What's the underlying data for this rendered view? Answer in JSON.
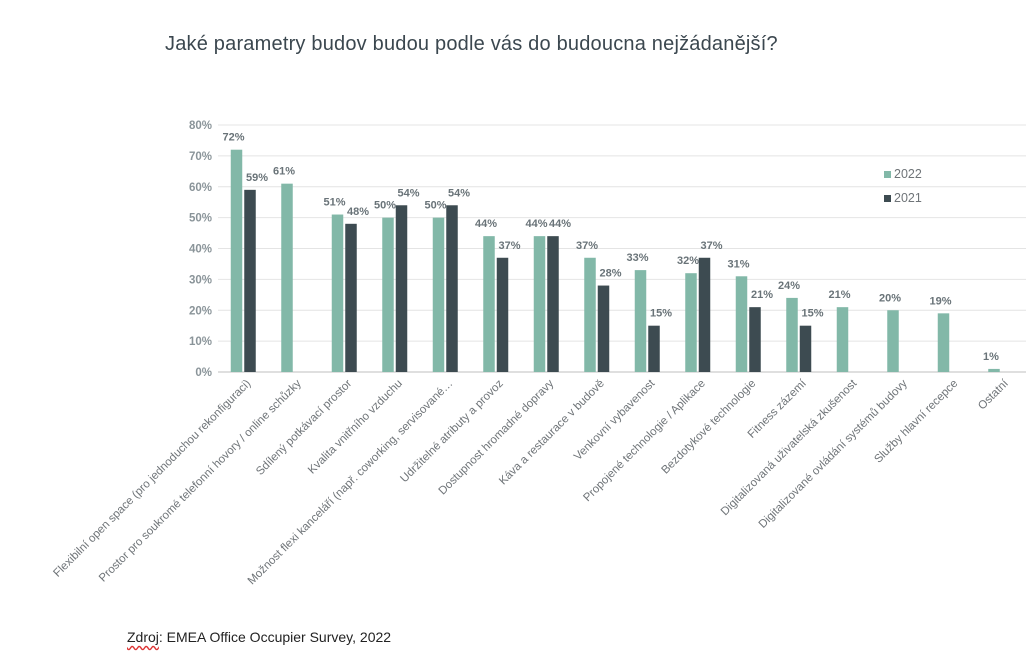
{
  "chart_data": {
    "type": "bar",
    "title": "Jaké parametry budov budou podle vás do budoucna nejžádanější?",
    "categories": [
      "Flexibilní open space (pro jednoduchou rekonfiguraci)",
      "Prostor pro soukromé telefonní hovory / online schůzky",
      "Sdílený potkávací prostor",
      "Kvalita vnitřního vzduchu",
      "Možnost flexi kanceláří (např. coworking, servisované…",
      "Udržitelné atributy a provoz",
      "Dostupnost hromadné dopravy",
      "Káva a restaurace v budově",
      "Venkovní vybavenost",
      "Propojené technologie / Aplikace",
      "Bezdotykové technologie",
      "Fitness zázemí",
      "Digitalizovaná uživatelská zkušenost",
      "Digitalizované ovládání systémů budovy",
      "Služby hlavní recepce",
      "Ostatní"
    ],
    "series": [
      {
        "name": "2022",
        "color": "#82b8a8",
        "values": [
          72,
          61,
          51,
          50,
          50,
          44,
          44,
          37,
          33,
          32,
          31,
          24,
          21,
          20,
          19,
          1
        ]
      },
      {
        "name": "2021",
        "color": "#3d4b51",
        "values": [
          59,
          null,
          48,
          54,
          54,
          37,
          44,
          28,
          15,
          37,
          21,
          15,
          null,
          null,
          null,
          null
        ]
      }
    ],
    "ylim": [
      0,
      80
    ],
    "yticks": [
      "0%",
      "10%",
      "20%",
      "30%",
      "40%",
      "50%",
      "60%",
      "70%",
      "80%"
    ],
    "value_suffix": "%",
    "grid": true,
    "legend_position": "right"
  },
  "source": {
    "prefix": "Zdroj",
    "text": ": EMEA Office Occupier Survey, 2022"
  }
}
